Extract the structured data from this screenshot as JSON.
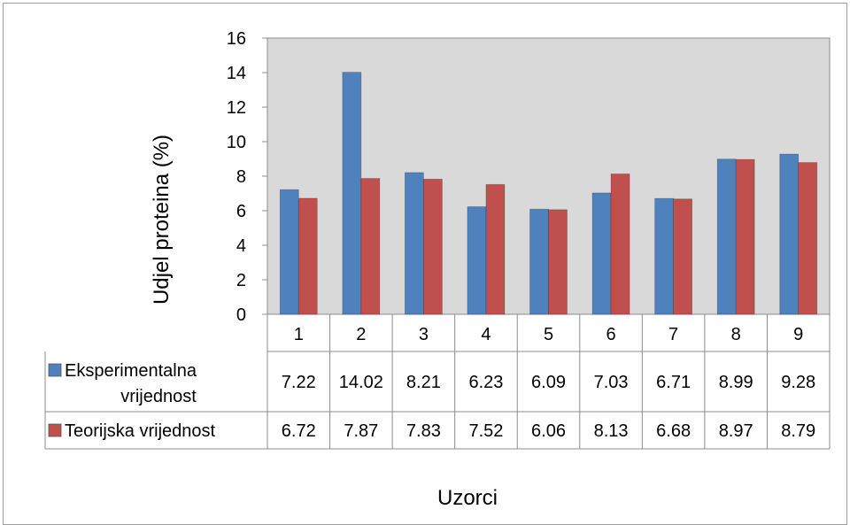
{
  "chart_data": {
    "type": "bar",
    "title": "",
    "xlabel": "Uzorci",
    "ylabel": "Udjel proteina (%)",
    "ylim": [
      0,
      16
    ],
    "yticks": [
      "0",
      "2",
      "4",
      "6",
      "8",
      "10",
      "12",
      "14",
      "16"
    ],
    "categories": [
      "1",
      "2",
      "3",
      "4",
      "5",
      "6",
      "7",
      "8",
      "9"
    ],
    "series": [
      {
        "name": "Eksperimentalna vrijednost",
        "name_lines": [
          "Eksperimentalna",
          "vrijednost"
        ],
        "color": "#4f81bd",
        "values": [
          7.22,
          14.02,
          8.21,
          6.23,
          6.09,
          7.03,
          6.71,
          8.99,
          9.28
        ],
        "labels": [
          "7.22",
          "14.02",
          "8.21",
          "6.23",
          "6.09",
          "7.03",
          "6.71",
          "8.99",
          "9.28"
        ]
      },
      {
        "name": "Teorijska vrijednost",
        "name_lines": [
          "Teorijska vrijednost"
        ],
        "color": "#c0504d",
        "values": [
          6.72,
          7.87,
          7.83,
          7.52,
          6.06,
          8.13,
          6.68,
          8.97,
          8.79
        ],
        "labels": [
          "6.72",
          "7.87",
          "7.83",
          "7.52",
          "6.06",
          "8.13",
          "6.68",
          "8.97",
          "8.79"
        ]
      }
    ],
    "plot_background": "#d9d9d9",
    "grid": false,
    "legend": "data-table"
  }
}
